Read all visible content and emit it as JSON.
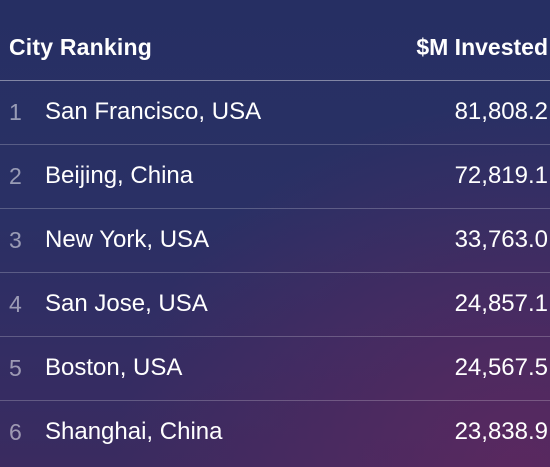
{
  "chart_data": {
    "type": "table",
    "columns": [
      "City Ranking",
      "$M Invested"
    ],
    "rows": [
      {
        "rank": "1",
        "city": "San Francisco, USA",
        "amount": "81,808.2"
      },
      {
        "rank": "2",
        "city": "Beijing, China",
        "amount": "72,819.1"
      },
      {
        "rank": "3",
        "city": "New York, USA",
        "amount": "33,763.0"
      },
      {
        "rank": "4",
        "city": "San Jose, USA",
        "amount": "24,857.1"
      },
      {
        "rank": "5",
        "city": "Boston, USA",
        "amount": "24,567.5"
      },
      {
        "rank": "6",
        "city": "Shanghai, China",
        "amount": "23,838.9"
      }
    ]
  },
  "colors": {
    "background_top": "#262f63",
    "background_bottom": "#3a2b60",
    "text": "#ffffff",
    "rank_text": "#9fa3c2"
  }
}
